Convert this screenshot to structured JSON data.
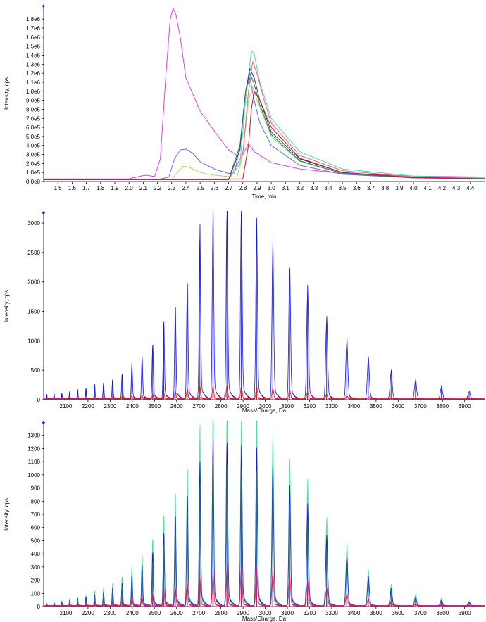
{
  "chart_data": [
    {
      "type": "line",
      "xlabel": "Time, min",
      "ylabel": "Intensity, cps",
      "xlim": [
        1.4,
        4.5
      ],
      "ylim": [
        0,
        1950000
      ],
      "x_ticks": [
        1.5,
        1.6,
        1.7,
        1.8,
        1.9,
        2.0,
        2.1,
        2.2,
        2.3,
        2.4,
        2.5,
        2.6,
        2.7,
        2.8,
        2.9,
        3.0,
        3.1,
        3.2,
        3.3,
        3.4,
        3.5,
        3.6,
        3.7,
        3.8,
        3.9,
        4.0,
        4.1,
        4.2,
        4.3,
        4.4
      ],
      "x_tick_labels": [
        "1.5",
        "1.6",
        "1.7",
        "1.8",
        "1.9",
        "2.0",
        "2.1",
        "2.2",
        "2.3",
        "2.4",
        "2.5",
        "2.6",
        "2.7",
        "2.8",
        "2.9",
        "3.0",
        "3.1",
        "3.2",
        "3.3",
        "3.4",
        "3.5",
        "3.6",
        "3.7",
        "3.8",
        "3.9",
        "4.0",
        "4.1",
        "4.2",
        "4.3",
        "4.4"
      ],
      "y_ticks": [
        0,
        100000,
        200000,
        300000,
        400000,
        500000,
        600000,
        700000,
        800000,
        900000,
        1000000,
        1100000,
        1200000,
        1300000,
        1400000,
        1500000,
        1600000,
        1700000,
        1800000
      ],
      "y_tick_labels": [
        "0.0e0",
        "1.0e5",
        "2.0e5",
        "3.0e5",
        "4.0e5",
        "5.0e5",
        "6.0e5",
        "7.0e5",
        "8.0e5",
        "9.0e5",
        "1.0e6",
        "1.1e6",
        "1.2e6",
        "1.3e6",
        "1.4e6",
        "1.5e6",
        "1.6e6",
        "1.7e6",
        "1.8e6"
      ],
      "series": [
        {
          "color": "#e040e0",
          "x": [
            1.4,
            2.0,
            2.08,
            2.12,
            2.18,
            2.22,
            2.26,
            2.29,
            2.31,
            2.33,
            2.36,
            2.4,
            2.5,
            2.6,
            2.7,
            2.76,
            2.8,
            2.84,
            2.88,
            3.0,
            3.2,
            3.5,
            4.0,
            4.5
          ],
          "y": [
            30000,
            30000,
            60000,
            70000,
            55000,
            250000,
            1200000,
            1800000,
            1920000,
            1850000,
            1600000,
            1150000,
            780000,
            560000,
            350000,
            290000,
            300000,
            420000,
            330000,
            210000,
            140000,
            90000,
            60000,
            50000
          ]
        },
        {
          "color": "#6a6aff",
          "x": [
            1.4,
            2.2,
            2.28,
            2.32,
            2.36,
            2.4,
            2.45,
            2.5,
            2.6,
            2.7,
            2.74,
            2.78,
            2.82,
            2.85,
            2.88,
            2.92,
            3.0,
            3.2,
            3.5,
            4.0,
            4.5
          ],
          "y": [
            20000,
            20000,
            50000,
            250000,
            350000,
            360000,
            310000,
            220000,
            140000,
            90000,
            80000,
            400000,
            1000000,
            1150000,
            900000,
            650000,
            400000,
            180000,
            80000,
            40000,
            30000
          ]
        },
        {
          "color": "#a0e060",
          "x": [
            1.4,
            2.3,
            2.34,
            2.38,
            2.42,
            2.5,
            2.6,
            2.7,
            2.76,
            2.8,
            2.84,
            2.87,
            2.9,
            3.0,
            3.2,
            3.5,
            4.0,
            4.5
          ],
          "y": [
            20000,
            20000,
            100000,
            170000,
            160000,
            100000,
            70000,
            55000,
            50000,
            300000,
            900000,
            1050000,
            900000,
            500000,
            220000,
            90000,
            40000,
            30000
          ]
        },
        {
          "color": "#40e0c0",
          "x": [
            1.4,
            2.7,
            2.78,
            2.82,
            2.86,
            2.88,
            2.92,
            3.0,
            3.2,
            3.5,
            4.0,
            4.5
          ],
          "y": [
            20000,
            20000,
            200000,
            900000,
            1450000,
            1420000,
            1100000,
            700000,
            330000,
            140000,
            60000,
            40000
          ]
        },
        {
          "color": "#ff6060",
          "x": [
            1.4,
            2.7,
            2.8,
            2.84,
            2.87,
            2.9,
            2.95,
            3.0,
            3.2,
            3.5,
            4.0,
            4.5
          ],
          "y": [
            20000,
            20000,
            300000,
            1000000,
            1330000,
            1200000,
            900000,
            650000,
            290000,
            120000,
            50000,
            35000
          ]
        },
        {
          "color": "#303090",
          "x": [
            1.4,
            2.7,
            2.78,
            2.82,
            2.85,
            2.88,
            2.92,
            3.0,
            3.2,
            3.5,
            4.0,
            4.5
          ],
          "y": [
            20000,
            20000,
            350000,
            1000000,
            1250000,
            1150000,
            900000,
            550000,
            250000,
            100000,
            45000,
            30000
          ]
        },
        {
          "color": "#208050",
          "x": [
            1.4,
            2.7,
            2.78,
            2.82,
            2.85,
            2.88,
            2.92,
            3.0,
            3.2,
            3.5,
            4.0,
            4.5
          ],
          "y": [
            20000,
            20000,
            400000,
            1000000,
            1200000,
            1080000,
            850000,
            520000,
            230000,
            90000,
            40000,
            30000
          ]
        },
        {
          "color": "#d01030",
          "x": [
            1.4,
            2.8,
            2.84,
            2.86,
            2.88,
            2.92,
            3.0,
            3.2,
            3.5,
            4.0,
            4.5
          ],
          "y": [
            20000,
            30000,
            400000,
            800000,
            1000000,
            900000,
            600000,
            260000,
            100000,
            45000,
            30000
          ]
        }
      ]
    },
    {
      "type": "line",
      "xlabel": "Mass/Charge, Da",
      "ylabel": "Intensity, cps",
      "xlim": [
        2000,
        3990
      ],
      "ylim": [
        0,
        3180
      ],
      "x_ticks": [
        2100,
        2200,
        2300,
        2400,
        2500,
        2600,
        2700,
        2800,
        2900,
        3000,
        3100,
        3200,
        3300,
        3400,
        3500,
        3600,
        3700,
        3800,
        3900
      ],
      "x_tick_labels": [
        "2100",
        "2200",
        "2300",
        "2400",
        "2500",
        "2600",
        "2700",
        "2800",
        "2900",
        "3000",
        "3100",
        "3200",
        "3300",
        "3400",
        "3500",
        "3600",
        "3700",
        "3800",
        "3900"
      ],
      "y_ticks": [
        0,
        500,
        1000,
        1500,
        2000,
        2500,
        3000
      ],
      "y_tick_labels": [
        "0",
        "500",
        "1000",
        "1500",
        "2000",
        "2500",
        "3000"
      ],
      "peak_positions": [
        2014,
        2047,
        2082,
        2117,
        2153,
        2191,
        2230,
        2270,
        2311,
        2354,
        2398,
        2444,
        2492,
        2542,
        2594,
        2648,
        2705,
        2764,
        2827,
        2892,
        2961,
        3034,
        3110,
        3191,
        3277,
        3368,
        3465,
        3568,
        3678,
        3795,
        3920
      ],
      "series": [
        {
          "color": "#1818e0",
          "peak_heights": [
            70,
            90,
            100,
            120,
            150,
            180,
            220,
            260,
            330,
            420,
            560,
            700,
            900,
            1200,
            1500,
            1900,
            2700,
            2950,
            3050,
            3150,
            2750,
            2450,
            2100,
            1750,
            1300,
            950,
            650,
            450,
            300,
            200,
            120
          ]
        },
        {
          "color": "#e01818",
          "peak_heights": [
            5,
            5,
            6,
            8,
            10,
            12,
            15,
            20,
            30,
            40,
            50,
            60,
            80,
            100,
            140,
            170,
            200,
            210,
            220,
            210,
            190,
            170,
            150,
            110,
            80,
            50,
            30,
            20,
            10,
            5,
            3
          ]
        }
      ]
    },
    {
      "type": "line",
      "xlabel": "Mass/Charge, Da",
      "ylabel": "Intensity, cps",
      "xlim": [
        2000,
        3990
      ],
      "ylim": [
        0,
        1400
      ],
      "x_ticks": [
        2100,
        2200,
        2300,
        2400,
        2500,
        2600,
        2700,
        2800,
        2900,
        3000,
        3100,
        3200,
        3300,
        3400,
        3500,
        3600,
        3700,
        3800,
        3900
      ],
      "x_tick_labels": [
        "2100",
        "2200",
        "2300",
        "2400",
        "2500",
        "2600",
        "2700",
        "2800",
        "2900",
        "3000",
        "3100",
        "3200",
        "3300",
        "3400",
        "3500",
        "3600",
        "3700",
        "3800",
        "3900"
      ],
      "y_ticks": [
        0,
        100,
        200,
        300,
        400,
        500,
        600,
        700,
        800,
        900,
        1000,
        1100,
        1200,
        1300
      ],
      "y_tick_labels": [
        "0",
        "100",
        "200",
        "300",
        "400",
        "500",
        "600",
        "700",
        "800",
        "900",
        "1000",
        "1100",
        "1200",
        "1300"
      ],
      "peak_positions": [
        2014,
        2047,
        2082,
        2117,
        2153,
        2191,
        2230,
        2270,
        2311,
        2354,
        2398,
        2444,
        2492,
        2542,
        2594,
        2648,
        2705,
        2764,
        2827,
        2892,
        2961,
        3034,
        3110,
        3191,
        3277,
        3368,
        3465,
        3568,
        3678,
        3795,
        3920
      ],
      "series": [
        {
          "color": "#40e8a0",
          "peak_heights": [
            20,
            30,
            40,
            50,
            60,
            80,
            100,
            130,
            170,
            220,
            280,
            380,
            500,
            620,
            820,
            1000,
            1250,
            1380,
            1370,
            1350,
            1300,
            1200,
            1050,
            870,
            620,
            430,
            250,
            150,
            80,
            50,
            30
          ]
        },
        {
          "color": "#1818e0",
          "peak_heights": [
            15,
            25,
            30,
            40,
            50,
            65,
            80,
            100,
            130,
            170,
            220,
            300,
            400,
            500,
            650,
            800,
            1000,
            1150,
            1160,
            1120,
            1080,
            980,
            860,
            700,
            500,
            350,
            200,
            120,
            60,
            40,
            25
          ]
        },
        {
          "color": "#3060a0",
          "peak_heights": [
            12,
            20,
            25,
            35,
            45,
            55,
            70,
            90,
            110,
            150,
            190,
            250,
            330,
            420,
            550,
            680,
            850,
            980,
            1000,
            960,
            920,
            830,
            720,
            580,
            420,
            290,
            170,
            100,
            50,
            30,
            20
          ]
        },
        {
          "color": "#e01858",
          "peak_heights": [
            3,
            4,
            5,
            6,
            8,
            10,
            14,
            20,
            30,
            40,
            55,
            70,
            90,
            110,
            140,
            170,
            200,
            240,
            270,
            280,
            270,
            250,
            220,
            180,
            130,
            90,
            50,
            30,
            15,
            8,
            5
          ]
        }
      ]
    }
  ]
}
